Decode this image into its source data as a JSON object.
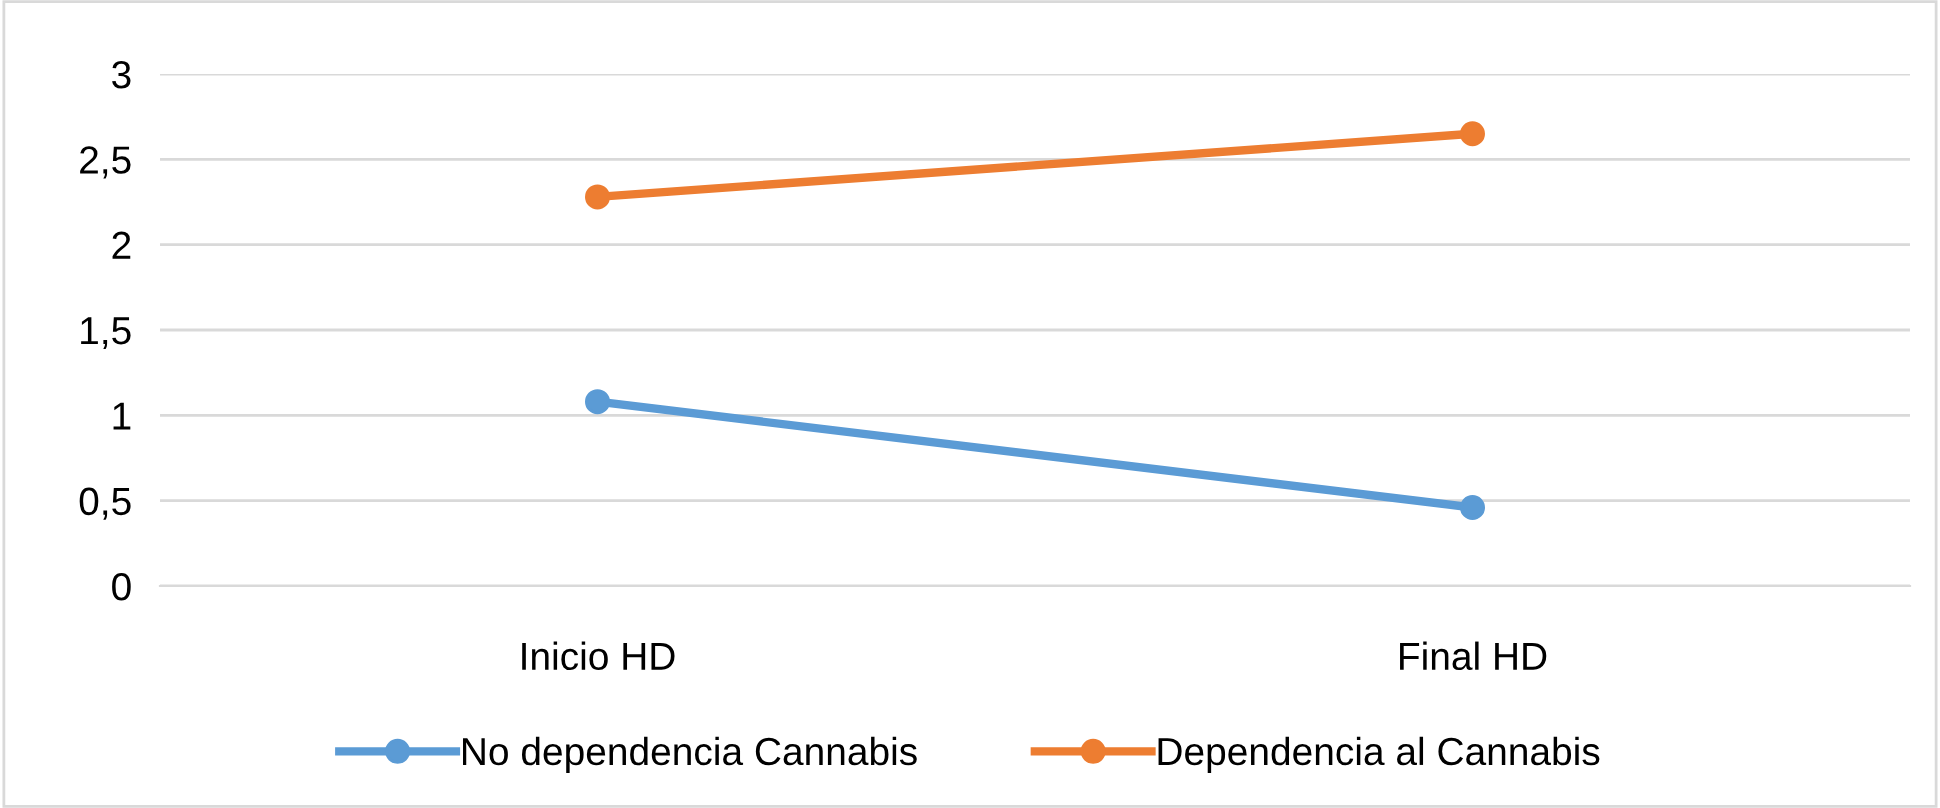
{
  "chart_data": {
    "type": "line",
    "categories": [
      "Inicio HD",
      "Final HD"
    ],
    "series": [
      {
        "name": "No dependencia Cannabis",
        "color": "#5b9bd5",
        "values": [
          1.08,
          0.46
        ]
      },
      {
        "name": "Dependencia al Cannabis",
        "color": "#ed7d31",
        "values": [
          2.28,
          2.65
        ]
      }
    ],
    "ylim": [
      0,
      3
    ],
    "yticks": [
      0,
      {
        "value": 0.5,
        "label": "0,5"
      },
      1,
      {
        "value": 1.5,
        "label": "1,5"
      },
      2,
      {
        "value": 2.5,
        "label": "2,5"
      },
      3
    ],
    "grid": "y",
    "legend": "bottom",
    "marker": "circle",
    "line_style": "solid"
  }
}
